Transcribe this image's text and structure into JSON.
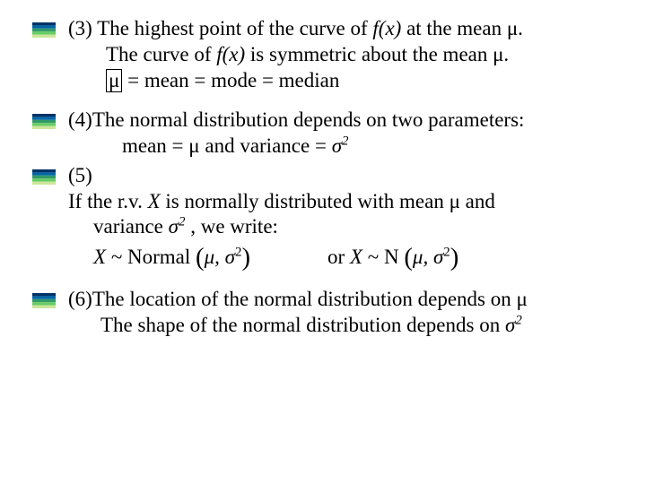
{
  "bullet": {
    "colors": [
      "#003366",
      "#0066a6",
      "#339966",
      "#66cc66",
      "#cce699"
    ],
    "width": 26,
    "height": 17,
    "stripe_height_ratio": 0.2
  },
  "text_color": "#000000",
  "background_color": "#ffffff",
  "font_family": "Times New Roman, Times, serif",
  "font_size_pt": 17,
  "items": {
    "p3": {
      "num": "(3)",
      "line1a": "The highest point of the curve of  ",
      "fx1": "f(x)",
      "line1b": " at  the mean μ.",
      "line2a": "The curve of ",
      "fx2": "f(x)",
      "line2b": " is symmetric about the mean μ.",
      "boxed_mu": "μ",
      "line3b": " = mean = mode = median"
    },
    "p4": {
      "num": "(4)",
      "line1": "The normal distribution depends on two parameters:",
      "line2a": "mean = μ and variance  = ",
      "sigma_sq": "σ",
      "sup2": "2"
    },
    "p5": {
      "num": "(5)",
      "line1a": "If the r.v.   ",
      "X": "X",
      "line1b": " is normally distributed with mean μ and",
      "line2a": "variance ",
      "sigma_sq": "σ",
      "sup2": "2",
      "line2b": " , we  write:",
      "line3a_X": "X",
      "line3a_rest": " ~ Normal ",
      "paren_mu_sigma_open": "(",
      "paren_content": "μ, σ",
      "paren_sup": "2",
      "paren_close": ")",
      "or_text": "or ",
      "X2": "X",
      "tilde_N": " ~ N "
    },
    "p6": {
      "num": "(6)",
      "line1": "The location of the normal distribution depends on μ",
      "line2a": "The shape of the normal distribution depends on ",
      "sigma_sq": "σ",
      "sup2": "2"
    }
  }
}
